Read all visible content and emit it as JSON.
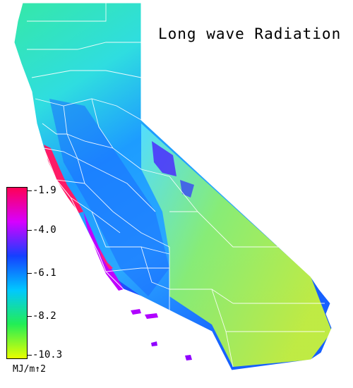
{
  "title": "Long wave Radiation",
  "legend": {
    "ticks": [
      "-1.9",
      "-4.0",
      "-6.1",
      "-8.2",
      "-10.3"
    ],
    "unit": "MJ/m↑2",
    "colors": [
      "#ff0055",
      "#d700ff",
      "#1540ff",
      "#00c8ff",
      "#22ee55",
      "#e8ff00"
    ]
  },
  "map": {
    "region": "California",
    "palette": {
      "north": "#3fe6b0",
      "central_valley": "#1a7dff",
      "coast_warm": "#b400ff",
      "coast_hot": "#ff1a66",
      "desert": "#a8f050",
      "mountains": "#3de7ff",
      "borders": "#ffffff"
    }
  }
}
